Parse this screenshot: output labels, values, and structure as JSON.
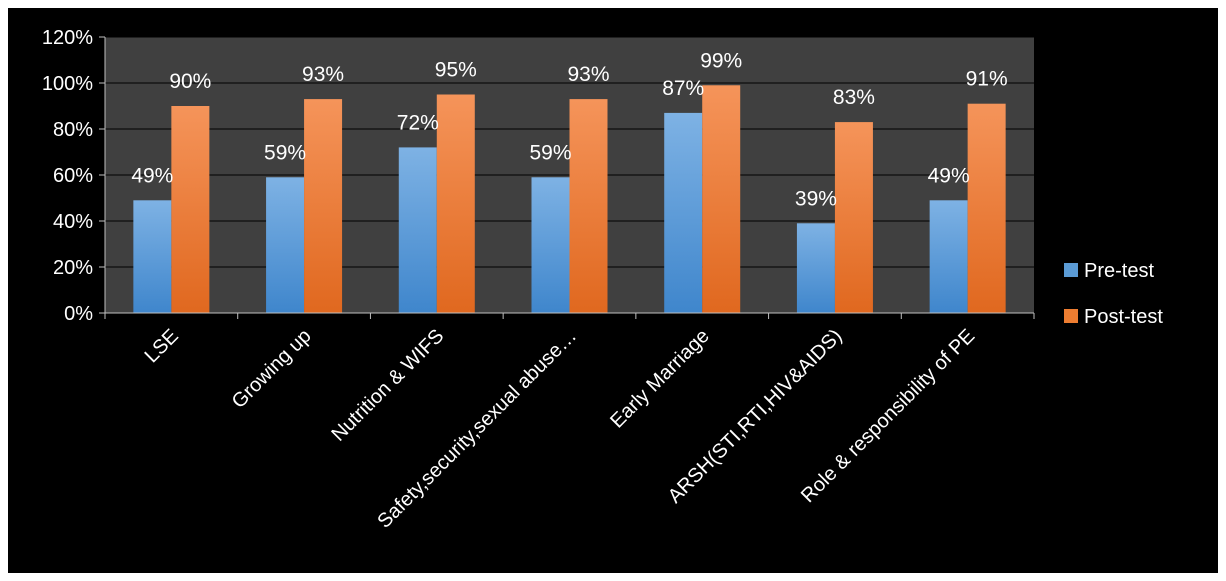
{
  "chart_data": {
    "type": "bar",
    "categories": [
      "LSE",
      "Growing up",
      "Nutrition & WIFS",
      "Safety,security,sexual abuse…",
      "Early Marriage",
      "ARSH(STI,RTI,HIV&AIDS)",
      "Role & responsibility of PE"
    ],
    "series": [
      {
        "name": "Pre-test",
        "values": [
          49,
          59,
          72,
          59,
          87,
          39,
          49
        ],
        "labels": [
          "49%",
          "59%",
          "72%",
          "59%",
          "87%",
          "39%",
          "49%"
        ],
        "color": "#5b9bd5"
      },
      {
        "name": "Post-test",
        "values": [
          90,
          93,
          95,
          93,
          99,
          83,
          91
        ],
        "labels": [
          "90%",
          "93%",
          "95%",
          "93%",
          "99%",
          "83%",
          "91%"
        ],
        "color": "#ed7d31"
      }
    ],
    "yticks": [
      "0%",
      "20%",
      "40%",
      "60%",
      "80%",
      "100%",
      "120%"
    ],
    "ylim": [
      0,
      120
    ],
    "legend_position": "right",
    "plot_background": "#404040",
    "page_background": "#000000"
  }
}
